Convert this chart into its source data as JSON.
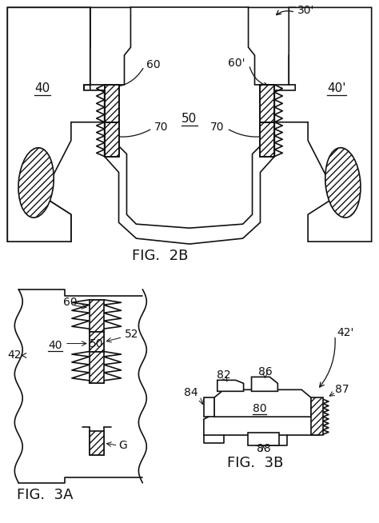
{
  "bg_color": "#ffffff",
  "line_color": "#111111",
  "fig_label_2b": "FIG.  2B",
  "fig_label_3a": "FIG.  3A",
  "fig_label_3b": "FIG.  3B",
  "labels": {
    "30p": "30'",
    "40": "40",
    "40p": "40'",
    "50": "50",
    "60": "60",
    "60p": "60'",
    "70a": "70",
    "70b": "70",
    "42": "42",
    "40_3a": "40",
    "50_3a": "50",
    "52": "52",
    "60_3a": "60",
    "G": "G",
    "42p": "42'",
    "80": "80",
    "82": "82",
    "84": "84",
    "86": "86",
    "87": "87",
    "88": "88"
  },
  "font_size_main": 10,
  "font_size_fig": 13,
  "lw_main": 1.2
}
